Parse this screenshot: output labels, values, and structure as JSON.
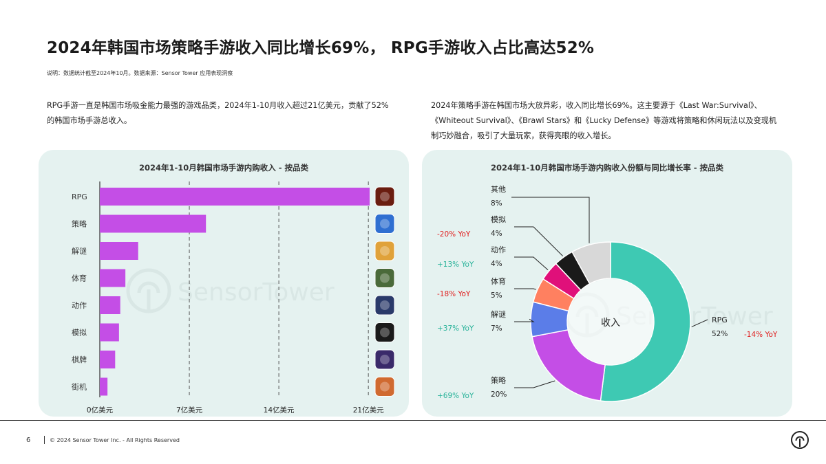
{
  "header": {
    "title": "2024年韩国市场策略手游收入同比增长69%， RPG手游收入占比高达52%",
    "note": "说明：数据统计截至2024年10月。数据来源：Sensor Tower 应用表现洞察"
  },
  "paragraphs": {
    "left": "RPG手游一直是韩国市场吸金能力最强的游戏品类，2024年1-10月收入超过21亿美元，贡献了52%的韩国市场手游总收入。",
    "right": "2024年策略手游在韩国市场大放异彩，收入同比增长69%。这主要源于《Last War:Survival》、《Whiteout Survival》、《Brawl Stars》和《Lucky Defense》等游戏将策略和休闲玩法以及变现机制巧妙融合，吸引了大量玩家，获得亮眼的收入增长。"
  },
  "watermark": "SensorTower",
  "chart_data": [
    {
      "type": "bar",
      "title": "2024年1-10月韩国市场手游内购收入 - 按品类",
      "categories": [
        "RPG",
        "策略",
        "解谜",
        "体育",
        "动作",
        "模拟",
        "棋牌",
        "街机"
      ],
      "values": [
        21.1,
        8.3,
        3.0,
        2.0,
        1.6,
        1.5,
        1.2,
        0.6
      ],
      "tick_labels": [
        "0亿美元",
        "7亿美元",
        "14亿美元",
        "21亿美元"
      ],
      "ticks": [
        0,
        7,
        14,
        21
      ],
      "xlim": [
        0,
        21.1
      ],
      "bar_color": "#c44ee6",
      "app_icon_colors": [
        "#6a1d10",
        "#2f6fd1",
        "#e0a23a",
        "#4a6a3a",
        "#2a3a6a",
        "#1a1a1a",
        "#3a2a6a",
        "#d06a30"
      ]
    },
    {
      "type": "pie",
      "title": "2024年1-10月韩国市场手游内购收入份额与同比增长率 - 按品类",
      "center_label": "收入",
      "slices": [
        {
          "name": "RPG",
          "value": 52,
          "label": "52%",
          "yoy": "-14% YoY",
          "color": "#3ec9b3",
          "yoy_color": "#e02020"
        },
        {
          "name": "策略",
          "value": 20,
          "label": "20%",
          "yoy": "+69% YoY",
          "color": "#c44ee6",
          "yoy_color": "#2ab39a"
        },
        {
          "name": "解谜",
          "value": 7,
          "label": "7%",
          "yoy": "+37% YoY",
          "color": "#5b7de8",
          "yoy_color": "#2ab39a"
        },
        {
          "name": "体育",
          "value": 5,
          "label": "5%",
          "yoy": "-18% YoY",
          "color": "#ff8060",
          "yoy_color": "#e02020"
        },
        {
          "name": "动作",
          "value": 4,
          "label": "4%",
          "yoy": "+13% YoY",
          "color": "#e0107a",
          "yoy_color": "#2ab39a"
        },
        {
          "name": "模拟",
          "value": 4,
          "label": "4%",
          "yoy": "-20% YoY",
          "color": "#1a1a1a",
          "yoy_color": "#e02020"
        },
        {
          "name": "其他",
          "value": 8,
          "label": "8%",
          "yoy": "",
          "color": "#d8d8d8",
          "yoy_color": "#2ab39a"
        }
      ]
    }
  ],
  "footer": {
    "page": "6",
    "copyright": "© 2024 Sensor Tower Inc. - All Rights Reserved"
  }
}
